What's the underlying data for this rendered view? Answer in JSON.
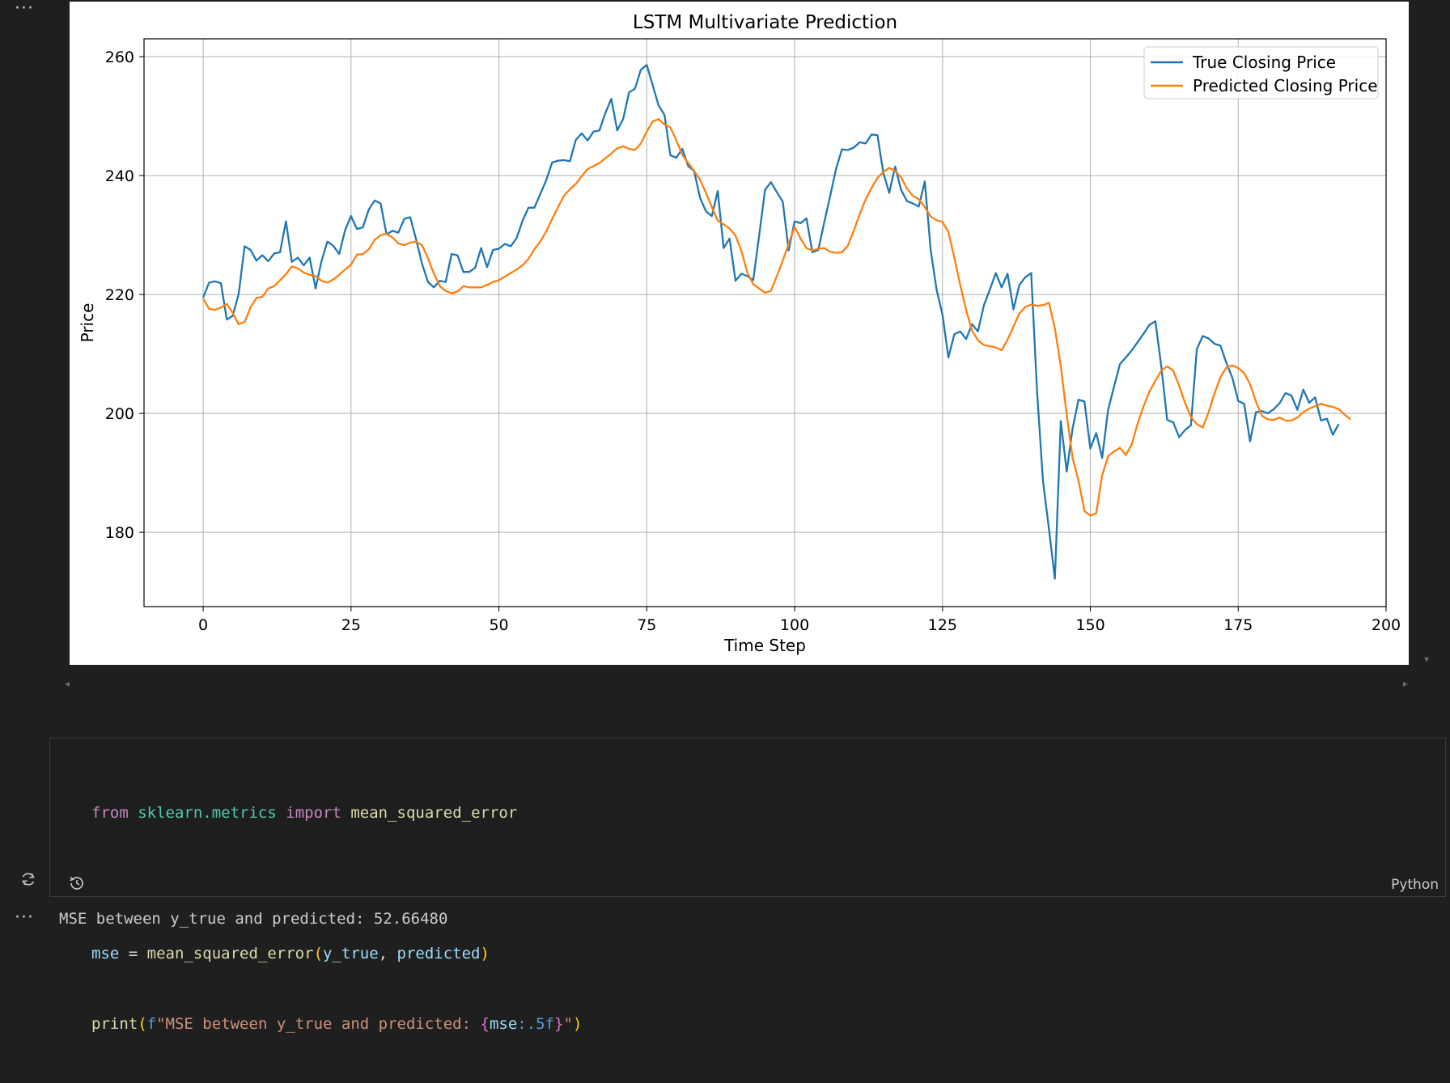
{
  "output_toolbar": {
    "more_label": "···"
  },
  "code_cell": {
    "language": "Python",
    "line1": {
      "kw_from": "from",
      "module": "sklearn.metrics",
      "kw_import": "import",
      "name": "mean_squared_error"
    },
    "line3": {
      "var": "mse",
      "eq": " = ",
      "fn": "mean_squared_error",
      "open": "(",
      "arg1": "y_true",
      "comma": ", ",
      "arg2": "predicted",
      "close": ")"
    },
    "line4": {
      "fn": "print",
      "open": "(",
      "prefix": "f",
      "str_start": "\"MSE between y_true and predicted: ",
      "brace_open": "{",
      "var": "mse",
      "fmt": ":.5f",
      "brace_close": "}",
      "str_end": "\"",
      "close": ")"
    }
  },
  "output": {
    "more_label": "···",
    "text": "MSE between y_true and predicted: 52.66480"
  },
  "colors": {
    "true_series": "#1f77b4",
    "predicted_series": "#ff7f0e",
    "background": "#1f1f1f"
  },
  "chart_data": {
    "type": "line",
    "title": "LSTM Multivariate Prediction",
    "xlabel": "Time Step",
    "ylabel": "Price",
    "xlim": [
      -10,
      200
    ],
    "ylim": [
      167.5,
      263
    ],
    "xticks": [
      0,
      25,
      50,
      75,
      100,
      125,
      150,
      175,
      200
    ],
    "yticks": [
      180,
      200,
      220,
      240,
      260
    ],
    "grid": true,
    "legend_position": "top-right",
    "series": [
      {
        "name": "True Closing Price",
        "color": "#1f77b4",
        "values": [
          219.5,
          222.0,
          222.2,
          221.9,
          215.8,
          216.4,
          220.1,
          228.1,
          227.5,
          225.7,
          226.6,
          225.6,
          226.9,
          227.1,
          232.3,
          225.5,
          226.2,
          224.9,
          226.2,
          221.0,
          225.6,
          228.9,
          228.2,
          226.8,
          230.8,
          233.2,
          231.0,
          231.3,
          234.3,
          235.8,
          235.3,
          230.1,
          230.7,
          230.4,
          232.7,
          233.0,
          229.3,
          225.2,
          222.1,
          221.2,
          222.3,
          222.1,
          226.8,
          226.6,
          223.8,
          223.8,
          224.5,
          227.8,
          224.6,
          227.5,
          227.7,
          228.5,
          228.1,
          229.5,
          232.4,
          234.6,
          234.6,
          236.9,
          239.2,
          242.2,
          242.5,
          242.6,
          242.4,
          246.0,
          247.1,
          245.9,
          247.4,
          247.6,
          250.5,
          252.9,
          247.6,
          249.5,
          254.0,
          254.6,
          257.8,
          258.6,
          255.2,
          251.8,
          250.2,
          243.4,
          243.0,
          244.5,
          241.6,
          240.8,
          236.3,
          234.0,
          233.2,
          237.4,
          227.8,
          229.4,
          222.3,
          223.5,
          223.1,
          222.4,
          229.9,
          237.6,
          238.9,
          237.2,
          235.6,
          227.4,
          232.3,
          232.0,
          232.8,
          227.1,
          227.5,
          232.1,
          236.5,
          241.1,
          244.4,
          244.3,
          244.7,
          245.6,
          245.4,
          246.9,
          246.8,
          240.4,
          237.1,
          241.5,
          237.6,
          235.7,
          235.3,
          234.8,
          239.0,
          227.5,
          220.8,
          216.6,
          209.4,
          213.3,
          213.8,
          212.5,
          215.0,
          213.8,
          218.2,
          220.8,
          223.6,
          221.2,
          223.5,
          217.5,
          221.6,
          222.9,
          223.6,
          203.6,
          188.6,
          180.5,
          172.2,
          198.7,
          190.2,
          197.5,
          202.3,
          202.0,
          194.1,
          196.7,
          192.5,
          200.6,
          204.5,
          208.3,
          209.4,
          210.6,
          212.0,
          213.4,
          214.9,
          215.5,
          207.9,
          198.9,
          198.5,
          196.0,
          197.2,
          198.0,
          210.8,
          213.0,
          212.6,
          211.7,
          211.4,
          208.5,
          206.0,
          202.1,
          201.6,
          195.3,
          200.2,
          200.4,
          200.0,
          200.7,
          201.7,
          203.4,
          203.0,
          200.6,
          204.0,
          201.8,
          202.7,
          198.8,
          199.1,
          196.4,
          198.2
        ]
      },
      {
        "name": "Predicted Closing Price",
        "color": "#ff7f0e",
        "values": [
          219.3,
          217.6,
          217.4,
          217.8,
          218.4,
          216.9,
          215.0,
          215.4,
          217.8,
          219.4,
          219.6,
          221.0,
          221.4,
          222.4,
          223.4,
          224.7,
          224.4,
          223.7,
          223.3,
          223.1,
          222.3,
          222.0,
          222.5,
          223.3,
          224.2,
          225.0,
          226.7,
          226.8,
          227.6,
          229.2,
          230.0,
          230.2,
          229.6,
          228.6,
          228.3,
          228.7,
          228.9,
          228.3,
          226.1,
          223.5,
          221.4,
          220.6,
          220.2,
          220.5,
          221.4,
          221.2,
          221.2,
          221.2,
          221.6,
          222.1,
          222.4,
          223.0,
          223.6,
          224.2,
          224.9,
          226.0,
          227.6,
          228.9,
          230.6,
          232.7,
          234.7,
          236.6,
          237.7,
          238.6,
          239.9,
          241.1,
          241.6,
          242.1,
          242.9,
          243.7,
          244.6,
          244.9,
          244.5,
          244.3,
          245.4,
          247.4,
          249.1,
          249.5,
          248.6,
          248.1,
          245.9,
          243.5,
          242.1,
          240.8,
          239.3,
          237.1,
          234.7,
          232.4,
          231.8,
          231.1,
          229.9,
          227.3,
          223.7,
          221.7,
          221.0,
          220.3,
          220.6,
          223.1,
          225.7,
          228.5,
          231.4,
          229.4,
          227.8,
          227.4,
          227.7,
          227.8,
          227.2,
          227.0,
          227.1,
          228.2,
          230.7,
          233.5,
          236.0,
          237.9,
          239.6,
          240.6,
          241.3,
          240.8,
          239.7,
          237.8,
          236.6,
          236.0,
          234.7,
          233.1,
          232.5,
          232.2,
          230.5,
          226.2,
          221.6,
          217.4,
          213.9,
          212.3,
          211.5,
          211.3,
          211.1,
          210.6,
          212.4,
          214.6,
          216.8,
          217.9,
          218.3,
          218.1,
          218.2,
          218.6,
          214.3,
          207.9,
          199.8,
          192.5,
          188.7,
          183.6,
          182.8,
          183.2,
          189.6,
          192.8,
          193.6,
          194.2,
          193.0,
          194.8,
          198.3,
          201.2,
          203.7,
          205.5,
          207.2,
          207.9,
          207.2,
          204.7,
          201.8,
          199.4,
          198.2,
          197.6,
          200.2,
          203.4,
          206.1,
          207.7,
          208.1,
          207.6,
          206.8,
          204.9,
          202.0,
          199.6,
          199.0,
          198.9,
          199.3,
          198.8,
          198.8,
          199.3,
          200.2,
          200.8,
          201.2,
          201.6,
          201.3,
          201.1,
          200.7,
          199.8,
          199.0
        ]
      }
    ]
  }
}
